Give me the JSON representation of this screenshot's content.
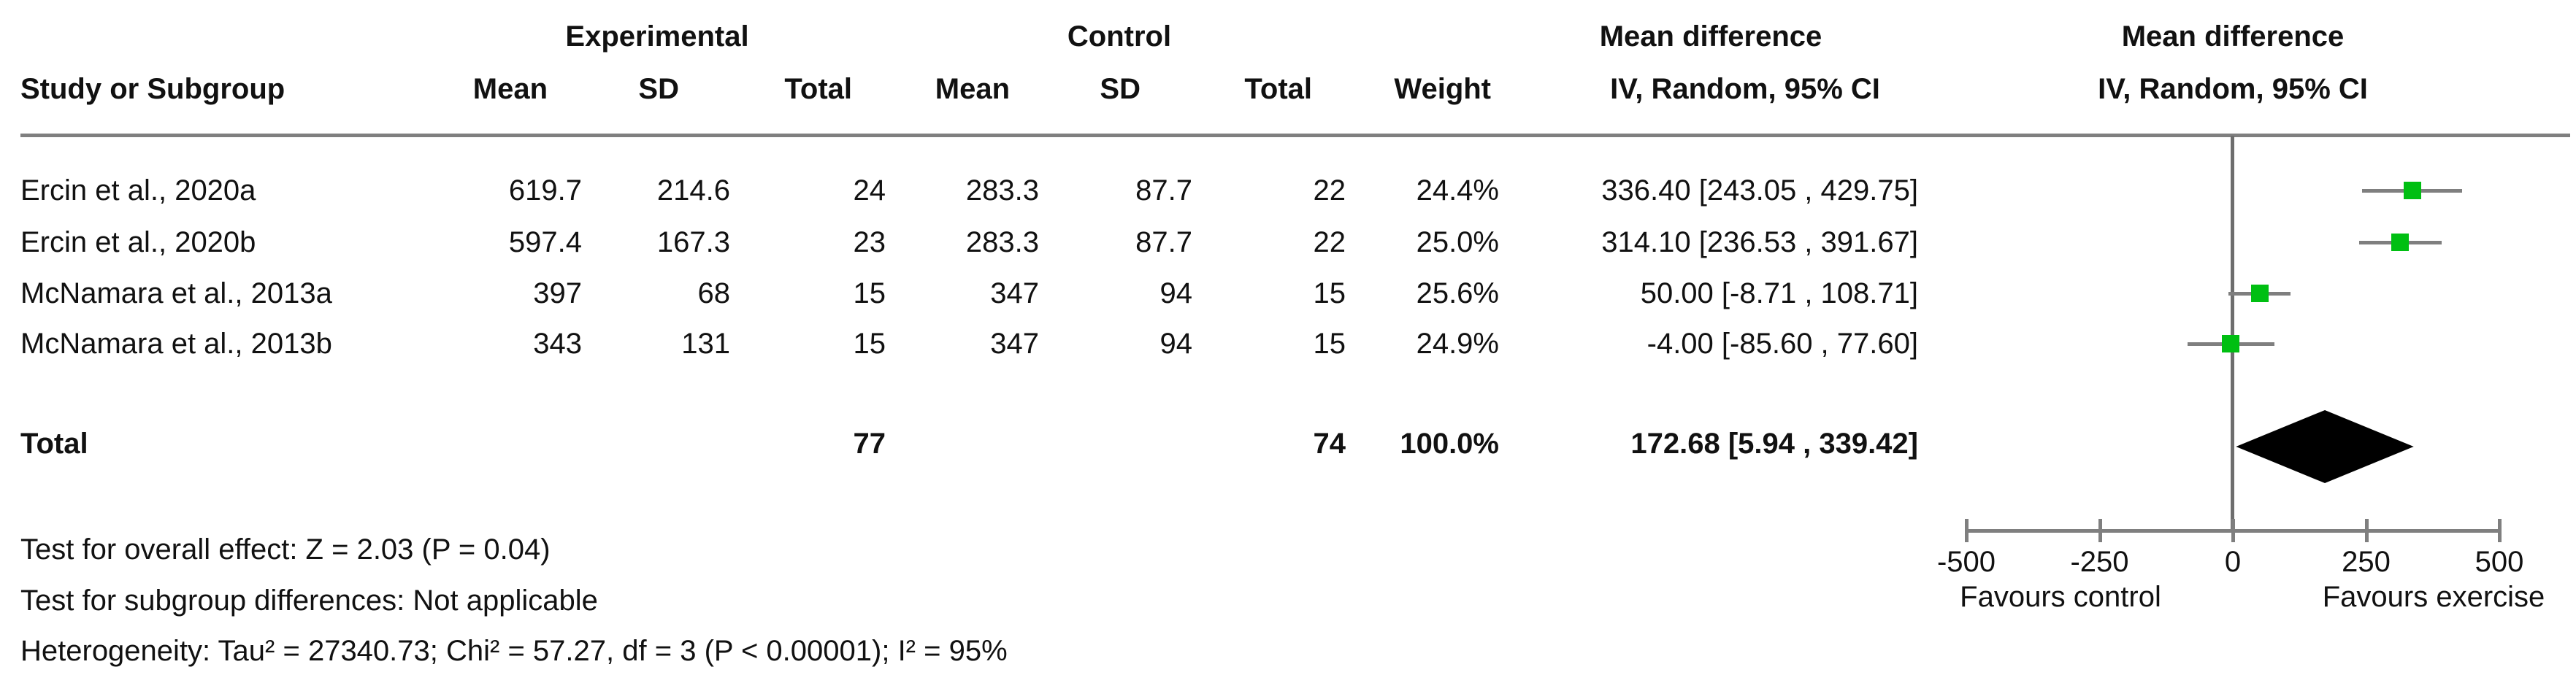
{
  "table": {
    "group_headers": {
      "experimental": "Experimental",
      "control": "Control",
      "md_text_col": "Mean difference",
      "md_plot_col": "Mean difference"
    },
    "col_headers": {
      "study": "Study or Subgroup",
      "mean_exp": "Mean",
      "sd_exp": "SD",
      "total_exp": "Total",
      "mean_ctl": "Mean",
      "sd_ctl": "SD",
      "total_ctl": "Total",
      "weight": "Weight",
      "iv_text_col": "IV, Random, 95% CI",
      "iv_plot_col": "IV, Random, 95% CI"
    },
    "rows": [
      {
        "study": "Ercin et al., 2020a",
        "mean_e": "619.7",
        "sd_e": "214.6",
        "total_e": "24",
        "mean_c": "283.3",
        "sd_c": "87.7",
        "total_c": "22",
        "weight": "24.4%",
        "ci_text": "336.40 [243.05 , 429.75]"
      },
      {
        "study": "Ercin et al., 2020b",
        "mean_e": "597.4",
        "sd_e": "167.3",
        "total_e": "23",
        "mean_c": "283.3",
        "sd_c": "87.7",
        "total_c": "22",
        "weight": "25.0%",
        "ci_text": "314.10 [236.53 , 391.67]"
      },
      {
        "study": "McNamara et al., 2013a",
        "mean_e": "397",
        "sd_e": "68",
        "total_e": "15",
        "mean_c": "347",
        "sd_c": "94",
        "total_c": "15",
        "weight": "25.6%",
        "ci_text": "50.00 [-8.71 , 108.71]"
      },
      {
        "study": "McNamara et al., 2013b",
        "mean_e": "343",
        "sd_e": "131",
        "total_e": "15",
        "mean_c": "347",
        "sd_c": "94",
        "total_c": "15",
        "weight": "24.9%",
        "ci_text": "-4.00 [-85.60 , 77.60]"
      }
    ],
    "total_row": {
      "label": "Total",
      "total_e": "77",
      "total_c": "74",
      "weight": "100.0%",
      "ci_text": "172.68 [5.94 , 339.42]"
    }
  },
  "footer": {
    "line1": "Test for overall effect: Z = 2.03 (P = 0.04)",
    "line2": "Test for subgroup differences: Not applicable",
    "line3": "Heterogeneity: Tau² = 27340.73; Chi² = 57.27, df = 3 (P < 0.00001); I² = 95%"
  },
  "chart_data": {
    "type": "forest",
    "effect_measure": "Mean difference",
    "model": "IV, Random, 95% CI",
    "studies": [
      {
        "name": "Ercin et al., 2020a",
        "md": 336.4,
        "ci_low": 243.05,
        "ci_high": 429.75,
        "weight_pct": 24.4
      },
      {
        "name": "Ercin et al., 2020b",
        "md": 314.1,
        "ci_low": 236.53,
        "ci_high": 391.67,
        "weight_pct": 25.0
      },
      {
        "name": "McNamara et al., 2013a",
        "md": 50.0,
        "ci_low": -8.71,
        "ci_high": 108.71,
        "weight_pct": 25.6
      },
      {
        "name": "McNamara et al., 2013b",
        "md": -4.0,
        "ci_low": -85.6,
        "ci_high": 77.6,
        "weight_pct": 24.9
      }
    ],
    "total": {
      "name": "Total",
      "md": 172.68,
      "ci_low": 5.94,
      "ci_high": 339.42,
      "weight_pct": 100.0,
      "n_exp": 77,
      "n_ctl": 74
    },
    "xaxis": {
      "min": -500,
      "max": 500,
      "ticks": [
        -500,
        -250,
        0,
        250,
        500
      ],
      "left_label": "Favours control",
      "right_label": "Favours exercise"
    },
    "colors": {
      "marker_green": "#00bf12",
      "line_gray": "#7f7f7f",
      "zero_line_gray": "#6e6e6e",
      "diamond_black": "#000000"
    }
  }
}
